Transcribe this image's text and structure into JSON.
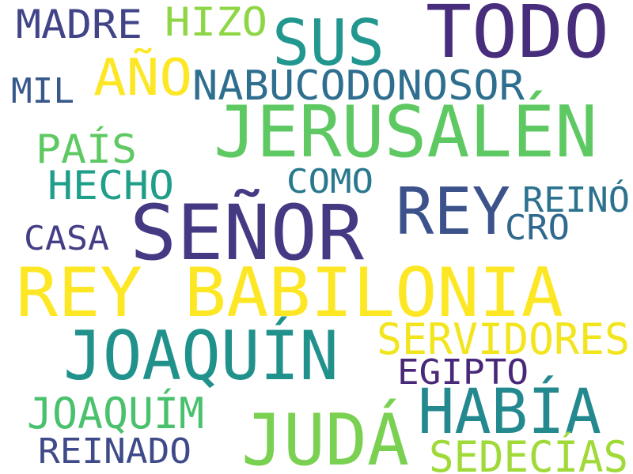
{
  "words": [
    {
      "id": "todo",
      "text": "TODO",
      "color": "#472d7b"
    },
    {
      "id": "sus",
      "text": "SUS",
      "color": "#22978f"
    },
    {
      "id": "madre",
      "text": "MADRE",
      "color": "#414487"
    },
    {
      "id": "hizo",
      "text": "HIZO",
      "color": "#8ed645"
    },
    {
      "id": "ano",
      "text": "AÑO",
      "color": "#fde725"
    },
    {
      "id": "nabucodonosor",
      "text": "NABUCODONOSOR",
      "color": "#2e6e8e"
    },
    {
      "id": "mil",
      "text": "MIL",
      "color": "#38588c"
    },
    {
      "id": "jerusalen",
      "text": "JERUSALÉN",
      "color": "#5ec962"
    },
    {
      "id": "pais",
      "text": "PAÍS",
      "color": "#5ec962"
    },
    {
      "id": "hecho",
      "text": "HECHO",
      "color": "#1f9e89"
    },
    {
      "id": "como",
      "text": "COMO",
      "color": "#2a788e"
    },
    {
      "id": "rey-1",
      "text": "REY",
      "color": "#3b528b"
    },
    {
      "id": "reino",
      "text": "REINÓ",
      "color": "#2c728e"
    },
    {
      "id": "cro",
      "text": "CRO",
      "color": "#31688e"
    },
    {
      "id": "casa",
      "text": "CASA",
      "color": "#433e85"
    },
    {
      "id": "senor",
      "text": "SEÑOR",
      "color": "#443983"
    },
    {
      "id": "rey-babilonia",
      "text": "REY BABILONIA",
      "color": "#fde725"
    },
    {
      "id": "joaquin",
      "text": "JOAQUÍN",
      "color": "#21918c"
    },
    {
      "id": "servidores",
      "text": "SERVIDORES",
      "color": "#f2e51d"
    },
    {
      "id": "egipto",
      "text": "EGIPTO",
      "color": "#482878"
    },
    {
      "id": "joaquim",
      "text": "JOAQUÍM",
      "color": "#4ac16d"
    },
    {
      "id": "habia",
      "text": "HABÍA",
      "color": "#23898e"
    },
    {
      "id": "juda",
      "text": "JUDÁ",
      "color": "#7ad151"
    },
    {
      "id": "reinado",
      "text": "REINADO",
      "color": "#3e4a89"
    },
    {
      "id": "sedecias",
      "text": "SEDECÍAS",
      "color": "#a0da39"
    }
  ]
}
